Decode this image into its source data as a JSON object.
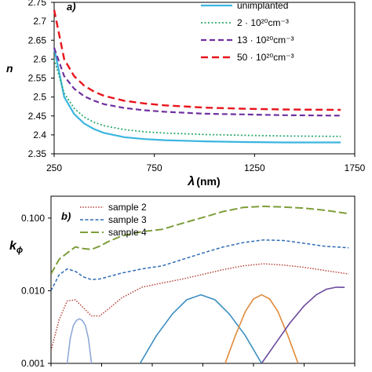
{
  "colors": {
    "unimplanted": "#3bb5e0",
    "dose2": "#2eaa6e",
    "dose13": "#7030a0",
    "dose50": "#e8141c",
    "sample2": "#b5453b",
    "sample3": "#2f6cb5",
    "sample4": "#7e9e3a",
    "g1": "#8fa9d8",
    "g2": "#3d8fc2",
    "g3": "#e08a3a",
    "g4": "#6a4a9e"
  },
  "chart_data": [
    {
      "type": "line",
      "panel_label": "a)",
      "xlabel_symbol": "λ",
      "xlabel_unit": "(nm)",
      "ylabel": "n",
      "xlim": [
        250,
        1750
      ],
      "ylim": [
        2.35,
        2.75
      ],
      "xticks": [
        250,
        750,
        1250,
        1750
      ],
      "xtick_labels": [
        "250",
        "750",
        "1250",
        "1750"
      ],
      "yticks": [
        2.35,
        2.4,
        2.45,
        2.5,
        2.55,
        2.6,
        2.65,
        2.7,
        2.75
      ],
      "ytick_labels": [
        "2.35",
        "2.4",
        "2.45",
        "2.5",
        "2.55",
        "2.6",
        "2.65",
        "2.7",
        "2.75"
      ],
      "legend_position": "top-right",
      "series": [
        {
          "name": "unimplanted",
          "style": "solid",
          "x": [
            250,
            300,
            350,
            400,
            450,
            500,
            600,
            700,
            800,
            1000,
            1200,
            1400,
            1680
          ],
          "y": [
            2.63,
            2.5,
            2.455,
            2.43,
            2.415,
            2.405,
            2.394,
            2.389,
            2.386,
            2.383,
            2.381,
            2.38,
            2.38
          ]
        },
        {
          "name": "2 · 10²⁰cm⁻³",
          "style": "dotted",
          "x": [
            250,
            300,
            350,
            400,
            450,
            500,
            600,
            700,
            800,
            1000,
            1200,
            1400,
            1680
          ],
          "y": [
            2.6,
            2.51,
            2.47,
            2.447,
            2.433,
            2.424,
            2.414,
            2.408,
            2.405,
            2.401,
            2.399,
            2.397,
            2.396
          ]
        },
        {
          "name": "13 · 10²⁰cm⁻³",
          "style": "dashed",
          "x": [
            250,
            300,
            350,
            400,
            450,
            500,
            600,
            700,
            800,
            1000,
            1200,
            1400,
            1680
          ],
          "y": [
            2.63,
            2.555,
            2.522,
            2.502,
            2.49,
            2.481,
            2.471,
            2.465,
            2.461,
            2.456,
            2.454,
            2.452,
            2.451
          ]
        },
        {
          "name": "50 · 10²⁰cm⁻³",
          "style": "dashed",
          "x": [
            250,
            300,
            350,
            400,
            450,
            500,
            600,
            700,
            800,
            1000,
            1200,
            1400,
            1680
          ],
          "y": [
            2.73,
            2.6,
            2.555,
            2.53,
            2.514,
            2.503,
            2.49,
            2.483,
            2.478,
            2.472,
            2.469,
            2.467,
            2.466
          ]
        }
      ]
    },
    {
      "type": "line",
      "panel_label": "b)",
      "ylabel_main": "k",
      "ylabel_sub": "ϕ",
      "yscale": "log",
      "xlim": [
        250,
        1750
      ],
      "ylim": [
        0.001,
        0.2
      ],
      "yticks": [
        0.001,
        0.01,
        0.1
      ],
      "ytick_labels": [
        "0.001",
        "0.010",
        "0.100"
      ],
      "legend_position": "top-left",
      "series": [
        {
          "name": "sample 2",
          "style": "dotted",
          "x": [
            250,
            290,
            330,
            370,
            410,
            450,
            490,
            530,
            600,
            700,
            800,
            900,
            1000,
            1100,
            1200,
            1300,
            1400,
            1500,
            1600,
            1720
          ],
          "y": [
            0.0015,
            0.004,
            0.0072,
            0.0075,
            0.0058,
            0.0045,
            0.0045,
            0.0055,
            0.008,
            0.0112,
            0.0128,
            0.0145,
            0.0168,
            0.0195,
            0.022,
            0.0235,
            0.0225,
            0.021,
            0.019,
            0.017
          ]
        },
        {
          "name": "sample 3",
          "style": "dashed",
          "x": [
            250,
            290,
            330,
            370,
            410,
            450,
            490,
            530,
            600,
            700,
            800,
            900,
            1000,
            1100,
            1200,
            1300,
            1400,
            1500,
            1600,
            1720
          ],
          "y": [
            0.01,
            0.0165,
            0.02,
            0.0185,
            0.0155,
            0.0142,
            0.0145,
            0.0155,
            0.0175,
            0.02,
            0.022,
            0.027,
            0.033,
            0.04,
            0.046,
            0.05,
            0.049,
            0.045,
            0.041,
            0.039
          ]
        },
        {
          "name": "sample 4",
          "style": "dashed",
          "x": [
            250,
            290,
            330,
            370,
            410,
            450,
            490,
            530,
            600,
            700,
            800,
            900,
            1000,
            1100,
            1200,
            1300,
            1400,
            1500,
            1600,
            1720
          ],
          "y": [
            0.017,
            0.027,
            0.033,
            0.04,
            0.038,
            0.037,
            0.041,
            0.047,
            0.057,
            0.065,
            0.07,
            0.085,
            0.102,
            0.123,
            0.14,
            0.145,
            0.142,
            0.137,
            0.128,
            0.115
          ]
        },
        {
          "style": "solid-thin",
          "x": [
            330,
            345,
            360,
            375,
            390,
            405,
            420,
            435,
            450
          ],
          "y": [
            0.001,
            0.0022,
            0.0033,
            0.0039,
            0.0041,
            0.0039,
            0.0033,
            0.0022,
            0.001
          ]
        },
        {
          "style": "solid-thin",
          "x": [
            690,
            770,
            850,
            920,
            990,
            1060,
            1130,
            1210,
            1290
          ],
          "y": [
            0.001,
            0.0024,
            0.0048,
            0.0075,
            0.0088,
            0.0075,
            0.0048,
            0.0024,
            0.001
          ]
        },
        {
          "style": "solid-thin",
          "x": [
            1110,
            1160,
            1210,
            1250,
            1290,
            1330,
            1370,
            1420,
            1470
          ],
          "y": [
            0.001,
            0.0024,
            0.0052,
            0.0077,
            0.0088,
            0.0077,
            0.0052,
            0.0024,
            0.001
          ]
        },
        {
          "style": "solid-thin",
          "x": [
            1290,
            1360,
            1430,
            1500,
            1560,
            1610,
            1660,
            1700
          ],
          "y": [
            0.001,
            0.0019,
            0.0036,
            0.0062,
            0.0088,
            0.0105,
            0.0112,
            0.0111
          ]
        }
      ]
    }
  ]
}
